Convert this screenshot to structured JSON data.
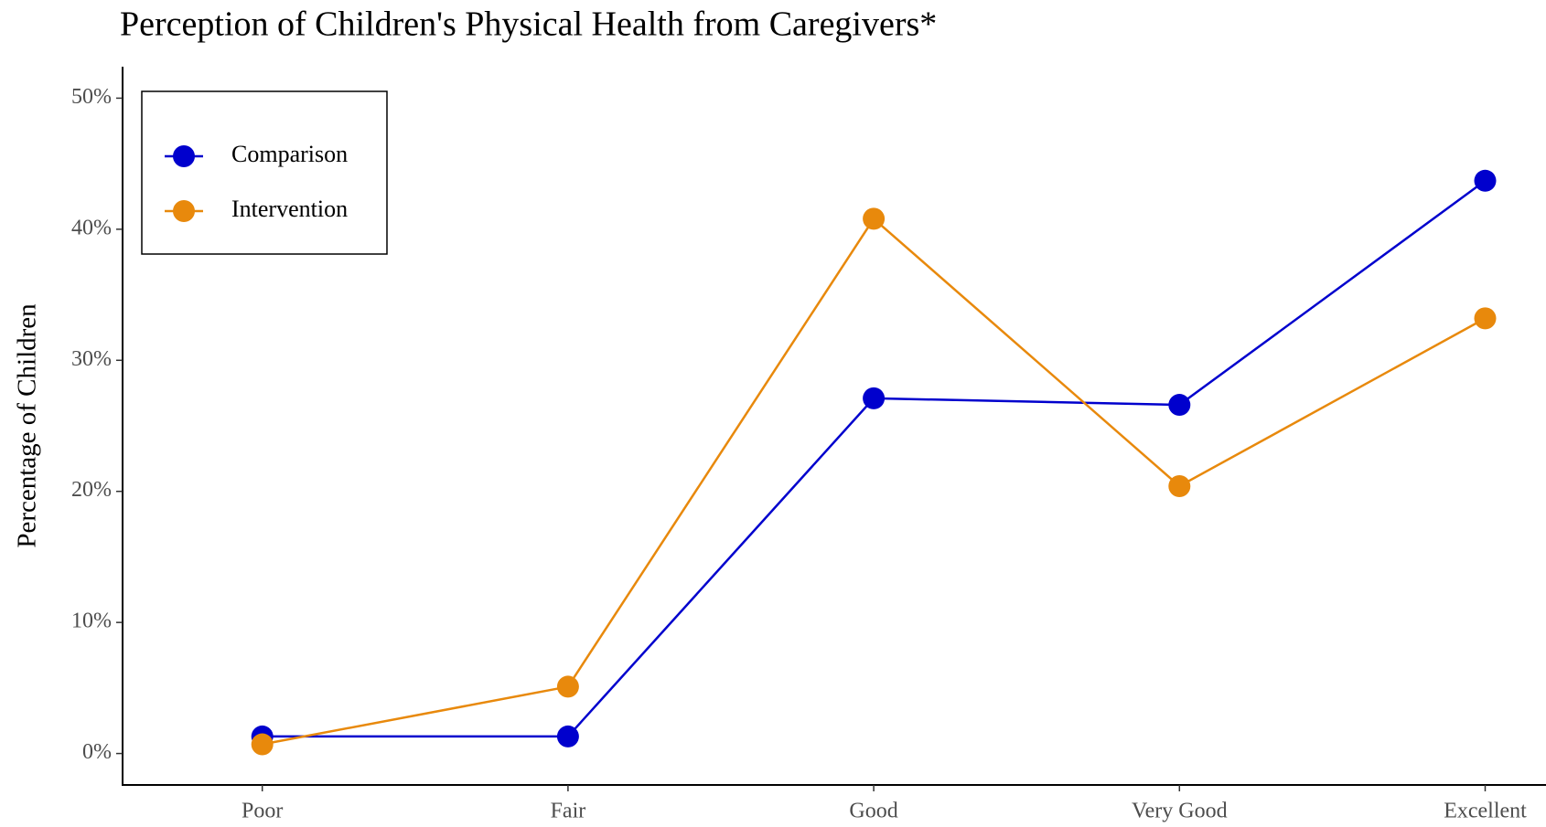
{
  "chart_data": {
    "type": "line",
    "title": "Perception of Children's Physical Health from Caregivers*",
    "y_label": "Percentage of Children",
    "categories": [
      "Poor",
      "Fair",
      "Good",
      "Very Good",
      "Excellent"
    ],
    "series": [
      {
        "name": "Comparison",
        "color": "#0000CD",
        "values": [
          1.3,
          1.3,
          27.1,
          26.6,
          43.7
        ]
      },
      {
        "name": "Intervention",
        "color": "#E8890C",
        "values": [
          0.7,
          5.1,
          40.8,
          20.4,
          33.2
        ]
      }
    ],
    "ylim": [
      -2.4,
      52.4
    ],
    "yticks": [
      {
        "value": 0,
        "label": "0%"
      },
      {
        "value": 10,
        "label": "10%"
      },
      {
        "value": 20,
        "label": "20%"
      },
      {
        "value": 30,
        "label": "30%"
      },
      {
        "value": 40,
        "label": "40%"
      },
      {
        "value": 50,
        "label": "50%"
      }
    ],
    "grid": false,
    "legend": "top-left"
  }
}
